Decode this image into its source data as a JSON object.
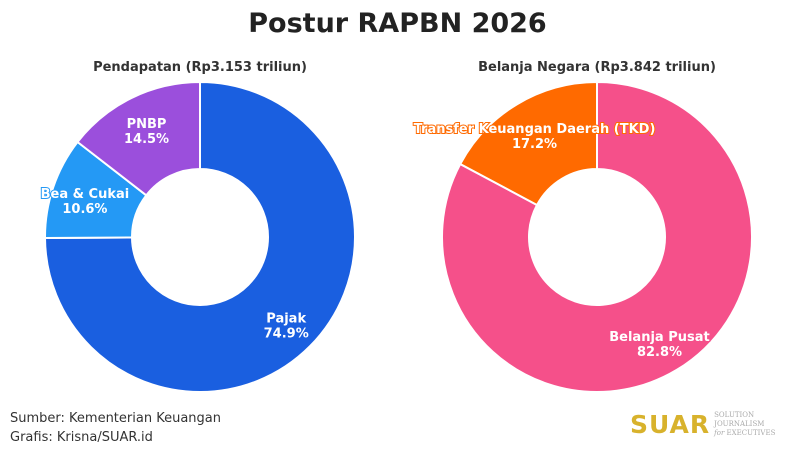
{
  "chart_data": [
    {
      "type": "pie",
      "title": "Pendapatan (Rp3.153 triliun)",
      "slices": [
        {
          "label": "Pajak",
          "value": 74.9,
          "value_label": "74.9%",
          "color": "#1a5fe0"
        },
        {
          "label": "Bea & Cukai",
          "value": 10.6,
          "value_label": "10.6%",
          "color": "#2499f5"
        },
        {
          "label": "PNBP",
          "value": 14.5,
          "value_label": "14.5%",
          "color": "#9b4fdc"
        }
      ]
    },
    {
      "type": "pie",
      "title": "Belanja Negara (Rp3.842 triliun)",
      "slices": [
        {
          "label": "Belanja Pusat",
          "value": 82.8,
          "value_label": "82.8%",
          "color": "#f5508a"
        },
        {
          "label": "Transfer Keuangan Daerah (TKD)",
          "value": 17.2,
          "value_label": "17.2%",
          "color": "#ff6a00"
        }
      ]
    }
  ],
  "title": "Postur RAPBN 2026",
  "source": "Sumber: Kementerian Keuangan",
  "credit": "Grafis: Krisna/SUAR.id",
  "logo": {
    "main": "SUAR",
    "tagline": "SOLUTION JOURNALISM for EXECUTIVES"
  }
}
